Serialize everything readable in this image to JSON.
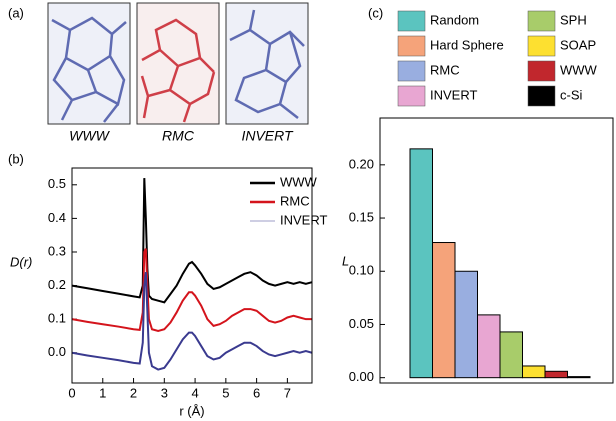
{
  "images": {
    "label": "(a)",
    "captions": [
      "WWW",
      "RMC",
      "INVERT"
    ]
  },
  "chart_data": [
    {
      "type": "line",
      "label": "(b)",
      "x_label": "r (Å)",
      "y_label": "D(r)",
      "x": [
        0,
        0.5,
        1,
        1.5,
        2,
        2.2,
        2.3,
        2.35,
        2.4,
        2.45,
        2.5,
        2.6,
        2.8,
        3.0,
        3.2,
        3.4,
        3.6,
        3.8,
        3.9,
        4.0,
        4.2,
        4.4,
        4.6,
        4.8,
        5.0,
        5.2,
        5.4,
        5.6,
        5.8,
        6.0,
        6.2,
        6.4,
        6.6,
        6.8,
        7.0,
        7.2,
        7.4,
        7.6,
        7.8
      ],
      "series": [
        {
          "name": "WWW",
          "color": "#000000",
          "values": [
            0.2,
            0.192,
            0.184,
            0.176,
            0.168,
            0.165,
            0.2,
            0.52,
            0.4,
            0.25,
            0.17,
            0.16,
            0.155,
            0.15,
            0.175,
            0.2,
            0.235,
            0.265,
            0.27,
            0.26,
            0.235,
            0.205,
            0.19,
            0.195,
            0.205,
            0.215,
            0.225,
            0.235,
            0.24,
            0.23,
            0.215,
            0.205,
            0.2,
            0.205,
            0.21,
            0.205,
            0.21,
            0.205,
            0.21
          ]
        },
        {
          "name": "RMC",
          "color": "#d4141c",
          "values": [
            0.1,
            0.092,
            0.085,
            0.078,
            0.07,
            0.068,
            0.12,
            0.3,
            0.31,
            0.2,
            0.1,
            0.07,
            0.065,
            0.07,
            0.09,
            0.12,
            0.155,
            0.18,
            0.18,
            0.17,
            0.14,
            0.1,
            0.08,
            0.085,
            0.095,
            0.11,
            0.12,
            0.13,
            0.13,
            0.125,
            0.11,
            0.095,
            0.09,
            0.095,
            0.105,
            0.11,
            0.105,
            0.1,
            0.1
          ]
        },
        {
          "name": "INVERT",
          "color": "#3a3a8f",
          "values": [
            0,
            -0.008,
            -0.015,
            -0.022,
            -0.03,
            -0.032,
            0.03,
            0.2,
            0.24,
            0.12,
            0.0,
            -0.04,
            -0.05,
            -0.045,
            -0.02,
            0.01,
            0.04,
            0.06,
            0.06,
            0.05,
            0.02,
            -0.01,
            -0.02,
            -0.015,
            0.0,
            0.01,
            0.02,
            0.03,
            0.03,
            0.02,
            0.005,
            -0.005,
            -0.01,
            -0.005,
            0.0,
            0.005,
            0.0,
            0.005,
            0.0
          ]
        }
      ],
      "xlim": [
        0,
        7.8
      ],
      "xticks": [
        0,
        1,
        2,
        3,
        4,
        5,
        6,
        7
      ],
      "ylim": [
        -0.09,
        0.55
      ],
      "yticks": [
        {
          "value": 0,
          "label": "0.0"
        },
        0.1,
        0.2,
        0.3,
        0.4,
        0.5
      ],
      "legend": "upper right"
    },
    {
      "type": "bar",
      "label": "(c)",
      "y_label": "L",
      "categories": [
        "Random",
        "Hard Sphere",
        "RMC",
        "INVERT",
        "SPH",
        "SOAP",
        "WWW",
        "c-Si"
      ],
      "values": [
        0.215,
        0.127,
        0.1,
        0.059,
        0.043,
        0.011,
        0.006,
        0.001
      ],
      "colors": [
        "#5bc4bf",
        "#f5a37a",
        "#99aee0",
        "#e8a6d2",
        "#a8cc6a",
        "#fde030",
        "#c1272d",
        "#000000"
      ],
      "ylim": [
        -0.005,
        0.244
      ],
      "yticks": [
        {
          "value": 0,
          "label": "0.00"
        },
        0.05,
        {
          "value": 0.1,
          "label": "0.10"
        },
        0.15,
        {
          "value": 0.2,
          "label": "0.20"
        }
      ],
      "legend": "above"
    }
  ]
}
